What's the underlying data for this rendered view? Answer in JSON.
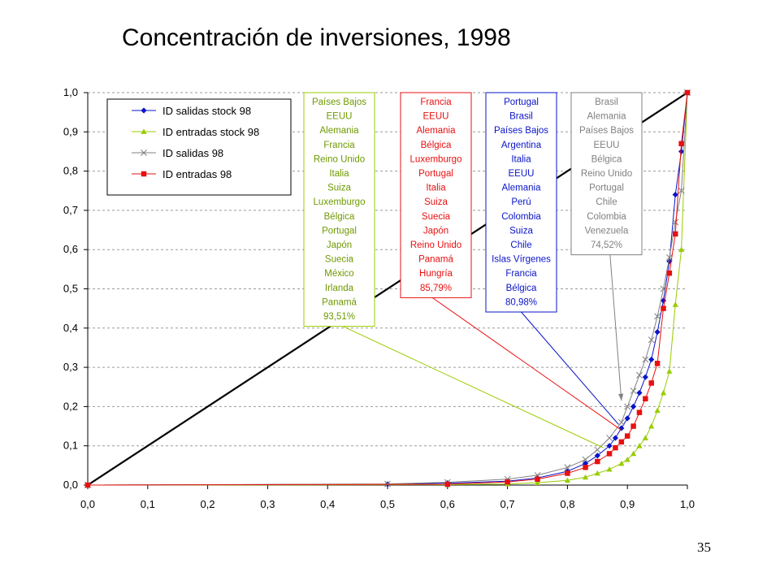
{
  "slide": {
    "title": "Concentración de inversiones, 1998",
    "page_number": "35"
  },
  "chart_data": {
    "type": "line",
    "title": "Concentración de inversiones, 1998",
    "xlabel": "",
    "ylabel": "",
    "xlim": [
      0,
      1
    ],
    "ylim": [
      0,
      1
    ],
    "x_ticks": [
      "0,0",
      "0,1",
      "0,2",
      "0,3",
      "0,4",
      "0,5",
      "0,6",
      "0,7",
      "0,8",
      "0,9",
      "1,0"
    ],
    "y_ticks": [
      "0,0",
      "0,1",
      "0,2",
      "0,3",
      "0,4",
      "0,5",
      "0,6",
      "0,7",
      "0,8",
      "0,9",
      "1,0"
    ],
    "grid": "horizontal dashed",
    "legend_position": "top-left",
    "reference_line": {
      "from": [
        0,
        0
      ],
      "to": [
        1,
        1
      ],
      "color": "#000000"
    },
    "colors": {
      "stock_salidas": "#0a14c8",
      "stock_entradas": "#99cc00",
      "salidas": "#808080",
      "entradas": "#e81010"
    },
    "series": [
      {
        "name": "ID salidas stock 98",
        "color": "#0a14c8",
        "marker": "diamond",
        "x": [
          0.0,
          0.5,
          0.6,
          0.7,
          0.75,
          0.8,
          0.83,
          0.85,
          0.87,
          0.88,
          0.89,
          0.9,
          0.91,
          0.92,
          0.93,
          0.94,
          0.95,
          0.96,
          0.97,
          0.98,
          0.99,
          1.0
        ],
        "y": [
          0.0,
          0.002,
          0.005,
          0.01,
          0.018,
          0.035,
          0.055,
          0.075,
          0.1,
          0.12,
          0.145,
          0.17,
          0.2,
          0.235,
          0.275,
          0.32,
          0.39,
          0.47,
          0.57,
          0.74,
          0.85,
          1.0
        ]
      },
      {
        "name": "ID entradas stock 98",
        "color": "#99cc00",
        "marker": "triangle",
        "x": [
          0.0,
          0.6,
          0.7,
          0.75,
          0.8,
          0.83,
          0.85,
          0.87,
          0.89,
          0.9,
          0.91,
          0.92,
          0.93,
          0.94,
          0.95,
          0.96,
          0.97,
          0.98,
          0.99,
          1.0
        ],
        "y": [
          0.0,
          0.001,
          0.003,
          0.006,
          0.012,
          0.02,
          0.03,
          0.04,
          0.055,
          0.065,
          0.08,
          0.1,
          0.12,
          0.15,
          0.19,
          0.235,
          0.29,
          0.46,
          0.6,
          1.0
        ]
      },
      {
        "name": "ID salidas 98",
        "color": "#808080",
        "marker": "x",
        "x": [
          0.0,
          0.5,
          0.6,
          0.7,
          0.75,
          0.8,
          0.83,
          0.85,
          0.87,
          0.89,
          0.9,
          0.91,
          0.92,
          0.93,
          0.94,
          0.95,
          0.96,
          0.97,
          0.98,
          0.99,
          1.0
        ],
        "y": [
          0.0,
          0.003,
          0.007,
          0.015,
          0.025,
          0.045,
          0.065,
          0.09,
          0.12,
          0.16,
          0.2,
          0.24,
          0.28,
          0.32,
          0.37,
          0.43,
          0.5,
          0.58,
          0.67,
          0.75,
          1.0
        ]
      },
      {
        "name": "ID entradas 98",
        "color": "#e81010",
        "marker": "square",
        "x": [
          0.0,
          0.6,
          0.7,
          0.75,
          0.8,
          0.83,
          0.85,
          0.87,
          0.88,
          0.89,
          0.9,
          0.91,
          0.92,
          0.93,
          0.94,
          0.95,
          0.96,
          0.97,
          0.98,
          0.99,
          1.0
        ],
        "y": [
          0.0,
          0.002,
          0.008,
          0.015,
          0.03,
          0.045,
          0.06,
          0.08,
          0.095,
          0.11,
          0.125,
          0.15,
          0.185,
          0.22,
          0.26,
          0.31,
          0.45,
          0.54,
          0.64,
          0.87,
          1.0
        ]
      }
    ],
    "annotation_boxes": [
      {
        "color": "#99cc00",
        "lines": [
          "Países Bajos",
          "EEUU",
          "Alemania",
          "Francia",
          "Reino Unido",
          "Italia",
          "Suiza",
          "Luxemburgo",
          "Bélgica",
          "Portugal",
          "Japón",
          "Suecia",
          "México",
          "Irlanda",
          "Panamá",
          "93,51%"
        ],
        "pointer": [
          0.86,
          0.095
        ]
      },
      {
        "color": "#e81010",
        "lines": [
          "Francia",
          "EEUU",
          "Alemania",
          "Bélgica",
          "Luxemburgo",
          "Portugal",
          "Italia",
          "Suiza",
          "Suecia",
          "Japón",
          "Reino Unido",
          "Panamá",
          "Hungría",
          "85,79%"
        ],
        "pointer": [
          0.89,
          0.14
        ]
      },
      {
        "color": "#0a14c8",
        "lines": [
          "Portugal",
          "Brasil",
          "Países Bajos",
          "Argentina",
          "Italia",
          "EEUU",
          "Alemania",
          "Perú",
          "Colombia",
          "Suiza",
          "Chile",
          "Islas Vírgenes",
          "Francia",
          "Bélgica",
          "80,98%"
        ],
        "pointer": [
          0.885,
          0.155
        ]
      },
      {
        "color": "#808080",
        "lines": [
          "Brasil",
          "Alemania",
          "Países Bajos",
          "EEUU",
          "Bélgica",
          "Reino Unido",
          "Portugal",
          "Chile",
          "Colombia",
          "Venezuela",
          "74,52%"
        ],
        "pointer": [
          0.89,
          0.215
        ]
      }
    ]
  }
}
